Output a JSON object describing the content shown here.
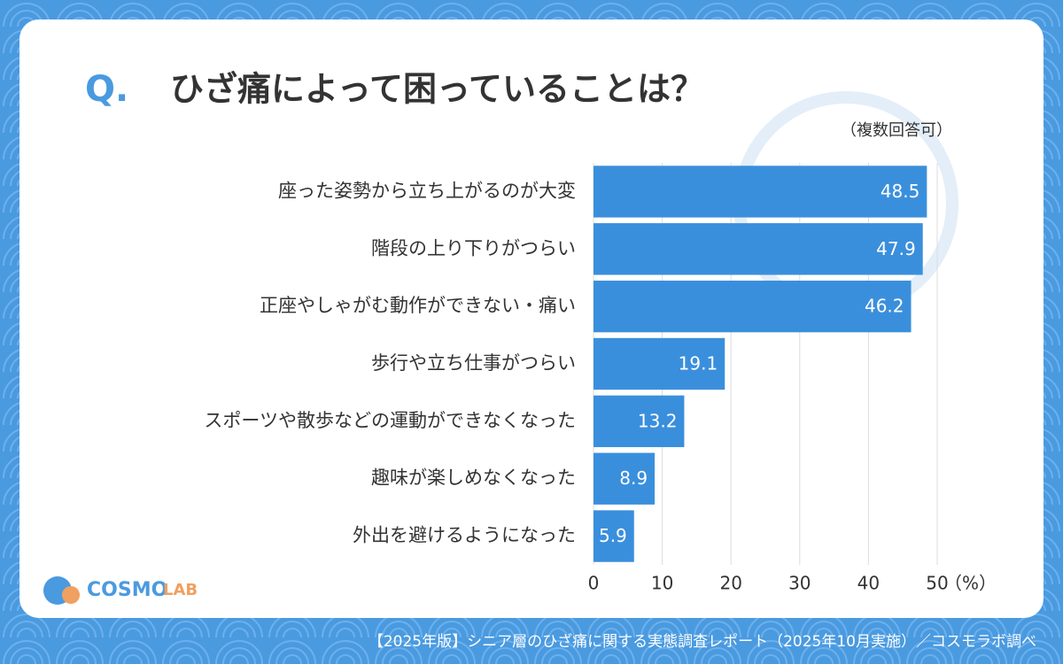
{
  "chart_data": {
    "type": "bar",
    "orientation": "horizontal",
    "question_mark": "Q.",
    "title": "ひざ痛によって困っていることは？",
    "subtitle": "（複数回答可）",
    "categories": [
      "座った姿勢から立ち上がるのが大変",
      "階段の上り下りがつらい",
      "正座やしゃがむ動作ができない・痛い",
      "歩行や立ち仕事がつらい",
      "スポーツや散歩などの運動ができなくなった",
      "趣味が楽しめなくなった",
      "外出を避けるようになった"
    ],
    "values": [
      48.5,
      47.9,
      46.2,
      19.1,
      13.2,
      8.9,
      5.9
    ],
    "color": "#3a8fdc",
    "xlim": [
      0,
      50
    ],
    "xticks": [
      0,
      10,
      20,
      30,
      40,
      50
    ],
    "xlabel": "（%）",
    "grid": true,
    "logo": [
      "COSMO",
      "LAB"
    ],
    "source": "【2025年版】シニア層のひざ痛に関する実態調査レポート（2025年10月実施）／コスモラボ調べ"
  }
}
